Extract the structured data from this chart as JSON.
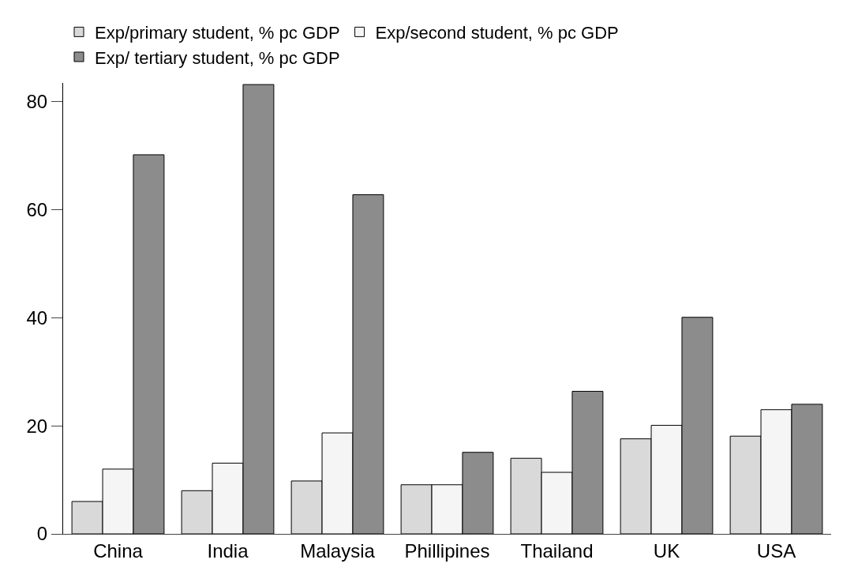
{
  "chart_data": {
    "type": "bar",
    "categories": [
      "China",
      "India",
      "Malaysia",
      "Phillipines",
      "Thailand",
      "UK",
      "USA"
    ],
    "series": [
      {
        "name": "Exp/primary student, % pc GDP",
        "color": "#d9d9d9",
        "values": [
          6.0,
          8.0,
          9.8,
          9.1,
          14.0,
          17.6,
          18.1
        ]
      },
      {
        "name": "Exp/second student, % pc GDP",
        "color": "#f5f5f5",
        "values": [
          12.0,
          13.1,
          18.7,
          9.1,
          11.4,
          20.1,
          23.0
        ]
      },
      {
        "name": "Exp/ tertiary student, % pc GDP",
        "color": "#8c8c8c",
        "values": [
          70.2,
          83.2,
          62.8,
          15.1,
          26.4,
          40.1,
          24.0
        ]
      }
    ],
    "ylim": [
      0,
      83.5
    ],
    "yticks": [
      0,
      20,
      40,
      60,
      80
    ],
    "legend": "top left"
  }
}
